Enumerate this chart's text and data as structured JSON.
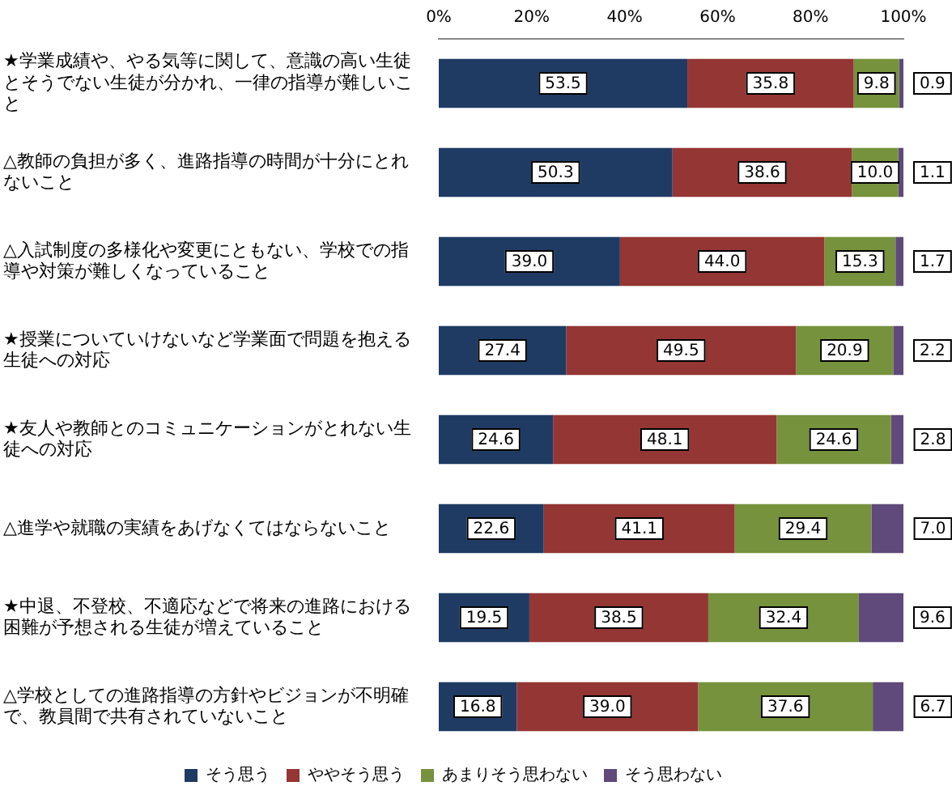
{
  "chart_data": {
    "type": "bar",
    "orientation": "horizontal",
    "stacked": true,
    "legend": "bottom",
    "grid": false,
    "categories": [
      "★学業成績や、やる気等に関して、意識の高い生徒とそうでない生徒が分かれ、一律の指導が難しいこと",
      "△教師の負担が多く、進路指導の時間が十分にとれないこと",
      "△入試制度の多様化や変更にともない、学校での指導や対策が難しくなっていること",
      "★授業についていけないなど学業面で問題を抱える生徒への対応",
      "★友人や教師とのコミュニケーションがとれない生徒への対応",
      "△進学や就職の実績をあげなくてはならないこと",
      "★中退、不登校、不適応などで将来の進路における困難が予想される生徒が増えていること",
      "△学校としての進路指導の方針やビジョンが不明確で、教員間で共有されていないこと"
    ],
    "xlim": [
      0,
      100
    ],
    "xticks": [
      {
        "value": 0,
        "label": "0%"
      },
      {
        "value": 20,
        "label": "20%"
      },
      {
        "value": 40,
        "label": "40%"
      },
      {
        "value": 60,
        "label": "60%"
      },
      {
        "value": 80,
        "label": "80%"
      },
      {
        "value": 100,
        "label": "100%"
      }
    ],
    "series": [
      {
        "name": "そう思う",
        "color": "#1f3b63",
        "values": [
          53.5,
          50.3,
          39.0,
          27.4,
          24.6,
          22.6,
          19.5,
          16.8
        ],
        "value_labels": [
          "53.5",
          "50.3",
          "39.0",
          "27.4",
          "24.6",
          "22.6",
          "19.5",
          "16.8"
        ]
      },
      {
        "name": "ややそう思う",
        "color": "#943634",
        "values": [
          35.8,
          38.6,
          44.0,
          49.5,
          48.1,
          41.1,
          38.5,
          39.0
        ],
        "value_labels": [
          "35.8",
          "38.6",
          "44.0",
          "49.5",
          "48.1",
          "41.1",
          "38.5",
          "39.0"
        ]
      },
      {
        "name": "あまりそう思わない",
        "color": "#76923c",
        "values": [
          9.8,
          10.0,
          15.3,
          20.9,
          24.6,
          29.4,
          32.4,
          37.6
        ],
        "value_labels": [
          "9.8",
          "10.0",
          "15.3",
          "20.9",
          "24.6",
          "29.4",
          "32.4",
          "37.6"
        ]
      },
      {
        "name": "そう思わない",
        "color": "#5f4a7b",
        "values": [
          0.9,
          1.1,
          1.7,
          2.2,
          2.8,
          7.0,
          9.6,
          6.7
        ],
        "value_labels": [
          "0.9",
          "1.1",
          "1.7",
          "2.2",
          "2.8",
          "7.0",
          "9.6",
          "6.7"
        ]
      }
    ]
  }
}
